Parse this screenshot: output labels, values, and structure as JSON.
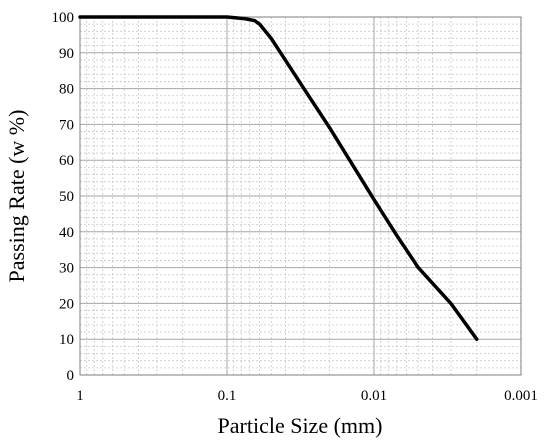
{
  "chart_data": {
    "type": "line",
    "xlabel": "Particle Size (mm)",
    "ylabel": "Passing Rate (w %)",
    "x_scale": "log",
    "x_reversed": true,
    "xlim": [
      1,
      0.001
    ],
    "ylim": [
      0,
      100
    ],
    "x_ticks": [
      1,
      0.1,
      0.01,
      0.001
    ],
    "x_tick_labels": [
      "1",
      "0.1",
      "0.01",
      "0.001"
    ],
    "y_ticks": [
      0,
      10,
      20,
      30,
      40,
      50,
      60,
      70,
      80,
      90,
      100
    ],
    "y_tick_labels": [
      "0",
      "10",
      "20",
      "30",
      "40",
      "50",
      "60",
      "70",
      "80",
      "90",
      "100"
    ],
    "grid": true,
    "minor_grid": true,
    "series": [
      {
        "color": "#000000",
        "x": [
          1,
          0.1,
          0.075,
          0.065,
          0.06,
          0.05,
          0.03,
          0.02,
          0.01,
          0.007,
          0.005,
          0.003,
          0.002
        ],
        "y": [
          100,
          100,
          99.5,
          99,
          98,
          94,
          80,
          69,
          49,
          39,
          30,
          20,
          10
        ]
      }
    ]
  }
}
